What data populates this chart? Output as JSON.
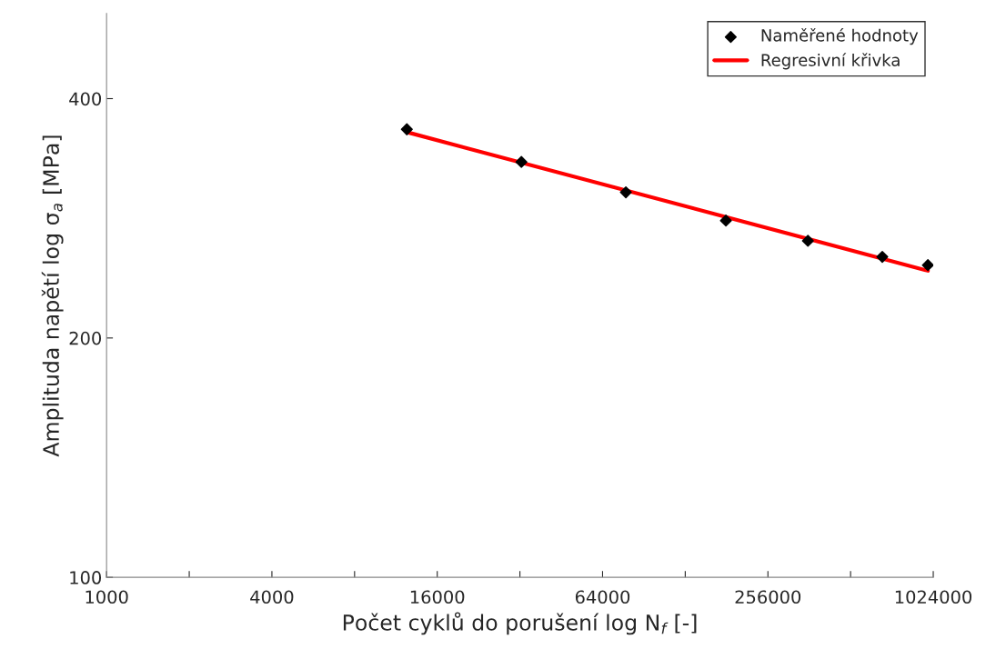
{
  "chart_data": {
    "type": "scatter",
    "log": "xy",
    "xlabel": "Počet cyklů do porušení log N$_{f}$ [-]",
    "ylabel": "Amplituda napětí log σ$_{a}$ [MPa]",
    "series": [
      {
        "name": "Naměřené hodnoty",
        "color": "#000000",
        "marker": "diamond",
        "x": [
          12400,
          32400,
          77800,
          180000,
          358000,
          668000,
          979000
        ],
        "values": [
          366,
          333,
          305,
          281,
          265,
          253,
          247
        ]
      },
      {
        "name": "Regresivní křivka",
        "type": "line",
        "color": "#ff0000",
        "marker": "none",
        "line_style": "solid",
        "x": [
          12400,
          979000
        ],
        "values": [
          363,
          243
        ]
      }
    ],
    "xlim": [
      1000,
      1024000
    ],
    "ylim": [
      100,
      512
    ],
    "xticks": [
      1000,
      {
        "value": 2000,
        "label": null
      },
      4000,
      {
        "value": 8000,
        "label": null
      },
      16000,
      {
        "value": 32000,
        "label": null
      },
      64000,
      {
        "value": 128000,
        "label": null
      },
      256000,
      {
        "value": 512000,
        "label": null
      },
      1024000
    ],
    "yticks": [
      100,
      200,
      400
    ],
    "grid": false,
    "legend": "top right"
  }
}
